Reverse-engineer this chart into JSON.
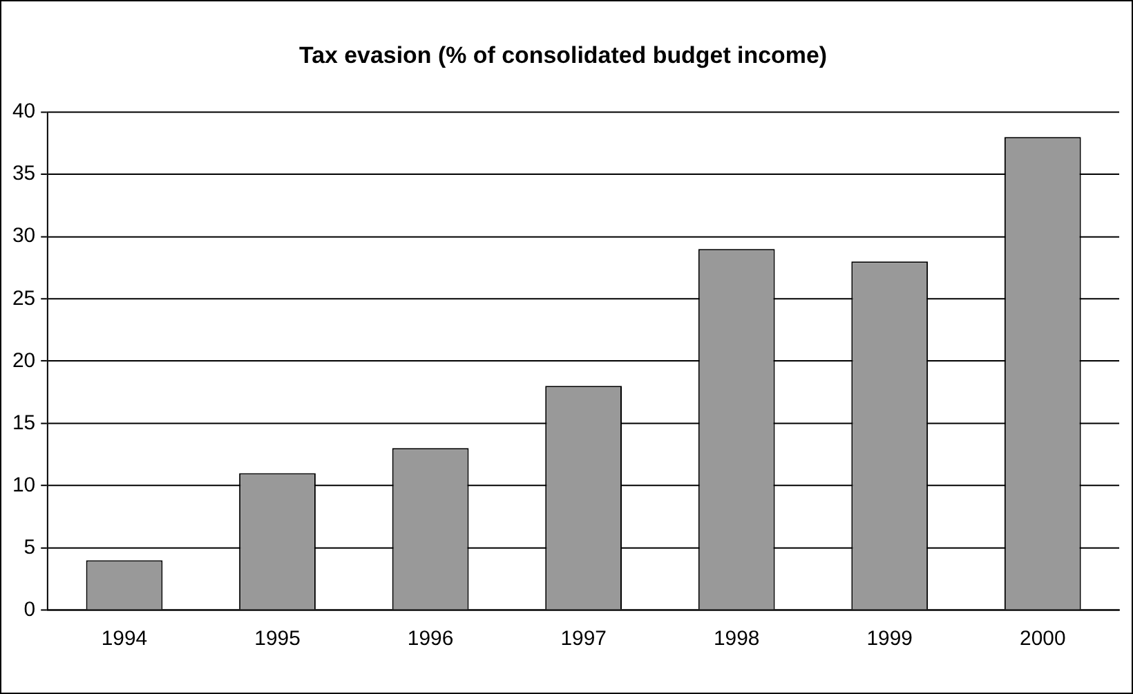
{
  "chart_data": {
    "type": "bar",
    "title": "Tax evasion (% of consolidated budget income)",
    "categories": [
      "1994",
      "1995",
      "1996",
      "1997",
      "1998",
      "1999",
      "2000"
    ],
    "values": [
      4,
      11,
      13,
      18,
      29,
      28,
      38
    ],
    "color": "#999999",
    "ylim": [
      0,
      40
    ],
    "yticks": [
      0,
      5,
      10,
      15,
      20,
      25,
      30,
      35,
      40
    ],
    "grid": "y",
    "legend": false
  }
}
